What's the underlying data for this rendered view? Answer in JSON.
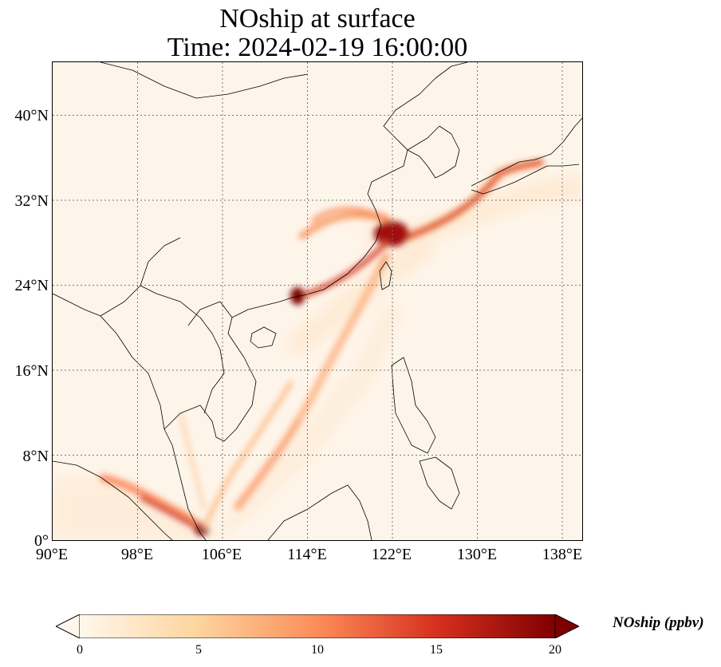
{
  "title_line1": "NOship at surface",
  "title_line2": "Time: 2024-02-19 16:00:00",
  "lat_ticks": [
    "40°N",
    "32°N",
    "24°N",
    "16°N",
    "8°N",
    "0°"
  ],
  "lon_ticks": [
    "90°E",
    "98°E",
    "106°E",
    "114°E",
    "122°E",
    "130°E",
    "138°E"
  ],
  "colorbar": {
    "label": "NOship (ppbv)",
    "ticks": [
      "0",
      "5",
      "10",
      "15",
      "20"
    ],
    "min": 0,
    "max": 20,
    "extend": "both",
    "colormap": "OrRd",
    "colors": [
      "#fff7ec",
      "#fdd49e",
      "#fc8d59",
      "#d7301f",
      "#7f0000"
    ]
  },
  "map_extent": {
    "lon_min": 90,
    "lon_max": 140,
    "lat_min": 0,
    "lat_max": 45
  },
  "gridlines": "dotted"
}
